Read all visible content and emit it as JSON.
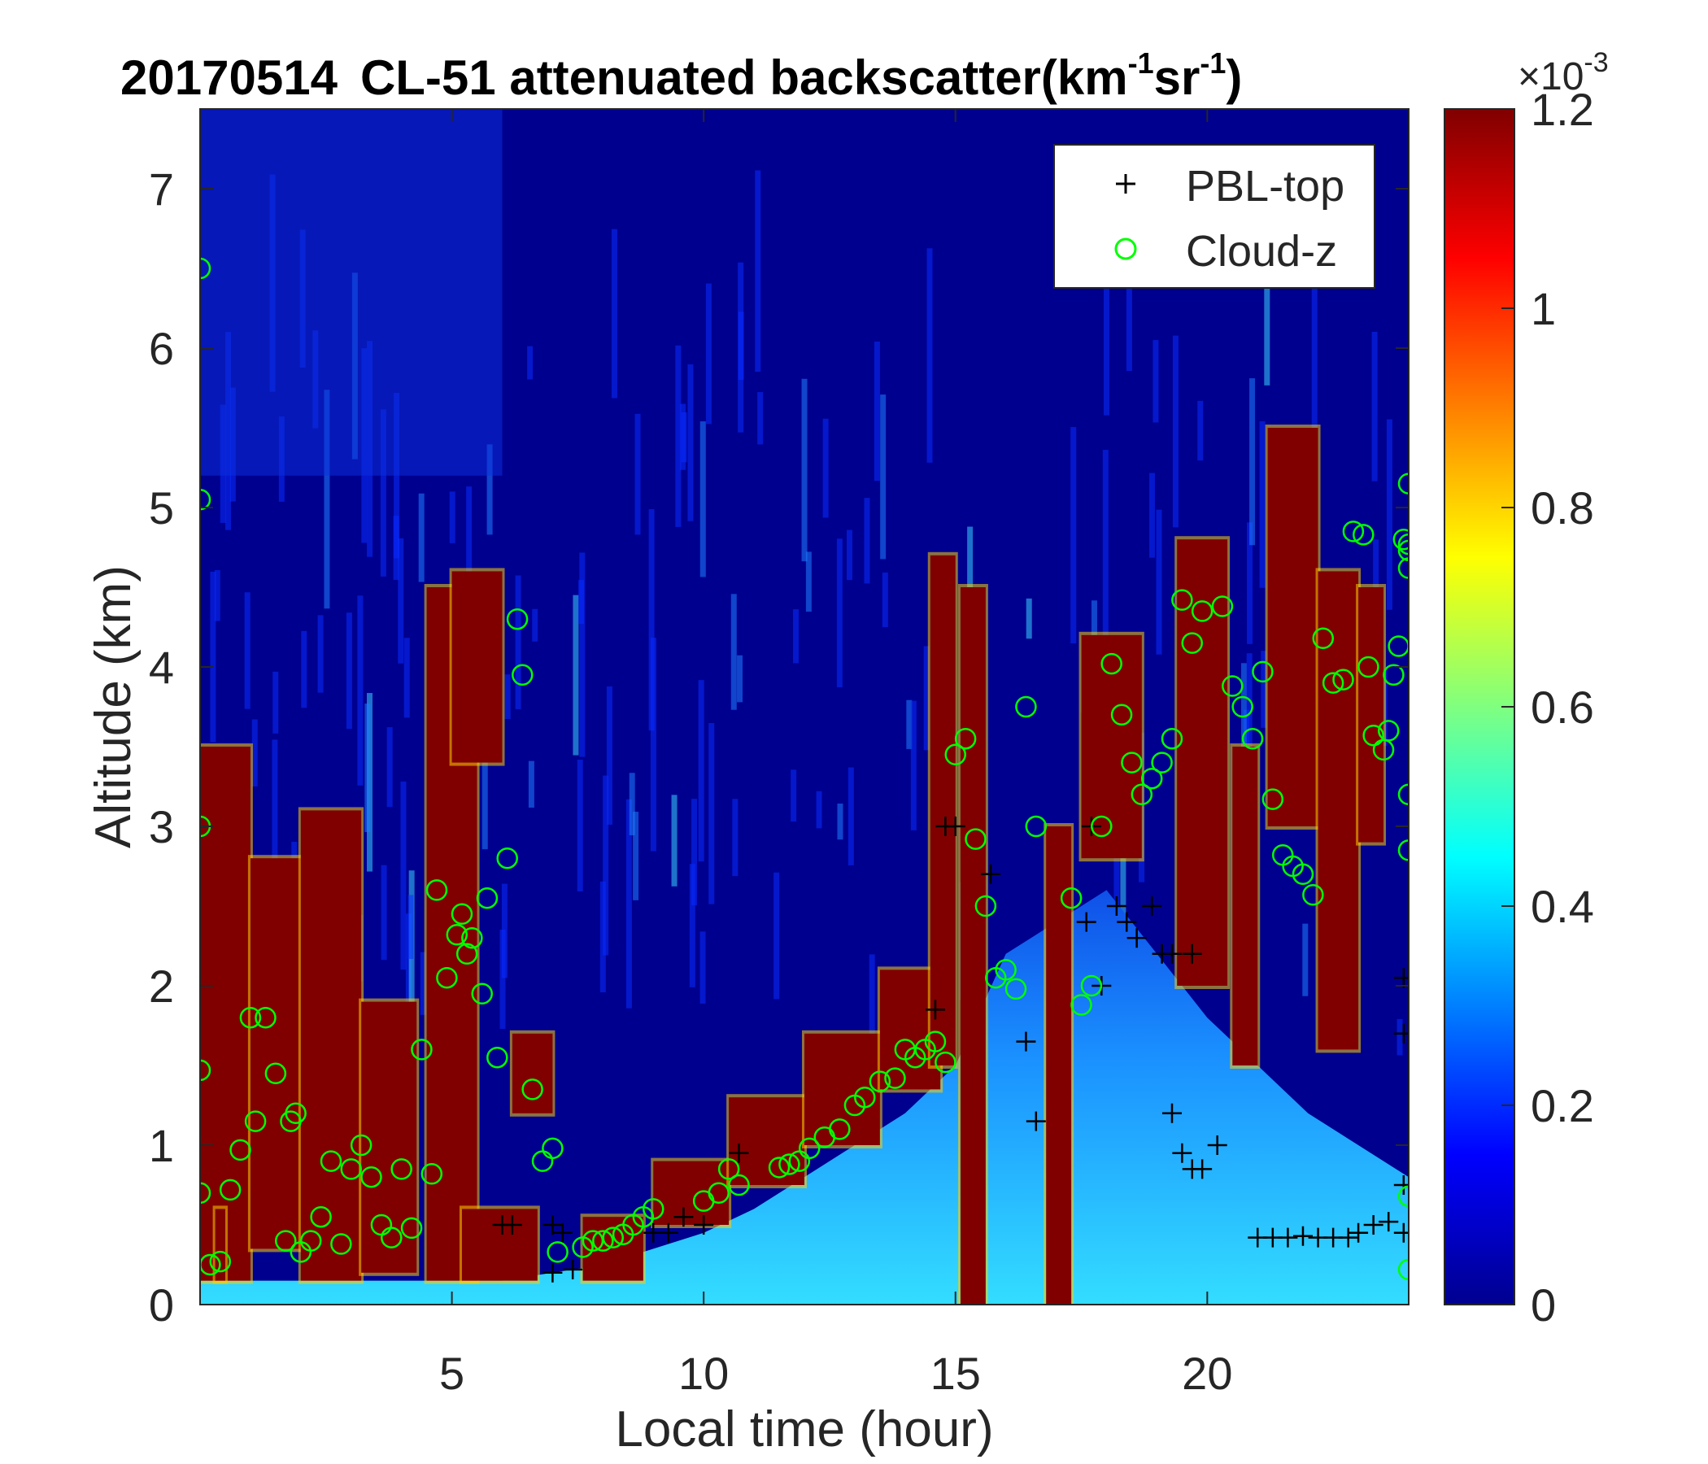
{
  "chart_data": {
    "type": "heatmap",
    "title": {
      "date": "20170514",
      "text": "CL-51 attenuated backscatter(km",
      "sup1": "-1",
      "mid": "sr",
      "sup2": "-1",
      "end": ")"
    },
    "xlabel": "Local time (hour)",
    "ylabel": "Altitude (km)",
    "xlim": [
      0,
      24
    ],
    "ylim": [
      0,
      7.5
    ],
    "xticks": [
      "5",
      "10",
      "15",
      "20"
    ],
    "yticks": [
      "0",
      "1",
      "2",
      "3",
      "4",
      "5",
      "6",
      "7"
    ],
    "colorbar": {
      "range": [
        0,
        1.2
      ],
      "ticks": [
        "0",
        "0.2",
        "0.4",
        "0.6",
        "0.8",
        "1",
        "1.2"
      ],
      "multiplier": "×10",
      "multiplier_exp": "-3",
      "colormap": "jet"
    },
    "legend": {
      "position": "top-right",
      "entries": [
        {
          "label": "PBL-top",
          "marker": "+",
          "color": "#000000"
        },
        {
          "label": "Cloud-z",
          "marker": "o",
          "color": "#00ff00"
        }
      ]
    },
    "colors": {
      "background_low": "#00008f",
      "high": "#800000",
      "marker_pbl": "#000000",
      "marker_cloud": "#00ff00"
    },
    "aerosol_layer_top": [
      [
        0,
        0.15
      ],
      [
        3,
        0.15
      ],
      [
        6,
        0.15
      ],
      [
        7,
        0.2
      ],
      [
        8,
        0.25
      ],
      [
        9,
        0.35
      ],
      [
        10,
        0.45
      ],
      [
        11,
        0.6
      ],
      [
        12,
        0.8
      ],
      [
        13,
        1.0
      ],
      [
        14,
        1.2
      ],
      [
        15,
        1.5
      ],
      [
        16,
        2.2
      ],
      [
        17,
        2.4
      ],
      [
        18,
        2.6
      ],
      [
        19,
        2.2
      ],
      [
        20,
        1.8
      ],
      [
        21,
        1.5
      ],
      [
        22,
        1.2
      ],
      [
        23,
        1.0
      ],
      [
        24,
        0.8
      ]
    ],
    "cloud_blocks": [
      {
        "x": [
          0.0,
          1.0
        ],
        "y": [
          0.15,
          3.5
        ]
      },
      {
        "x": [
          0.3,
          0.5
        ],
        "y": [
          0.15,
          0.6
        ]
      },
      {
        "x": [
          1.0,
          2.0
        ],
        "y": [
          0.35,
          2.8
        ]
      },
      {
        "x": [
          2.0,
          3.2
        ],
        "y": [
          0.15,
          3.1
        ]
      },
      {
        "x": [
          3.2,
          4.3
        ],
        "y": [
          0.2,
          1.9
        ]
      },
      {
        "x": [
          4.5,
          5.5
        ],
        "y": [
          0.15,
          4.5
        ]
      },
      {
        "x": [
          5.0,
          6.0
        ],
        "y": [
          3.4,
          4.6
        ]
      },
      {
        "x": [
          6.2,
          7.0
        ],
        "y": [
          1.2,
          1.7
        ]
      },
      {
        "x": [
          5.2,
          6.7
        ],
        "y": [
          0.15,
          0.6
        ]
      },
      {
        "x": [
          7.6,
          8.8
        ],
        "y": [
          0.15,
          0.55
        ]
      },
      {
        "x": [
          9.0,
          10.5
        ],
        "y": [
          0.5,
          0.9
        ]
      },
      {
        "x": [
          10.5,
          12.0
        ],
        "y": [
          0.75,
          1.3
        ]
      },
      {
        "x": [
          12.0,
          13.5
        ],
        "y": [
          1.0,
          1.7
        ]
      },
      {
        "x": [
          13.5,
          14.7
        ],
        "y": [
          1.35,
          2.1
        ]
      },
      {
        "x": [
          14.5,
          15.0
        ],
        "y": [
          1.5,
          4.7
        ]
      },
      {
        "x": [
          15.1,
          15.6
        ],
        "y": [
          0.0,
          4.5
        ]
      },
      {
        "x": [
          16.8,
          17.3
        ],
        "y": [
          0.0,
          3.0
        ]
      },
      {
        "x": [
          17.5,
          18.7
        ],
        "y": [
          2.8,
          4.2
        ]
      },
      {
        "x": [
          19.4,
          20.4
        ],
        "y": [
          2.0,
          4.8
        ]
      },
      {
        "x": [
          20.5,
          21.0
        ],
        "y": [
          1.5,
          3.5
        ]
      },
      {
        "x": [
          21.2,
          22.2
        ],
        "y": [
          3.0,
          5.5
        ]
      },
      {
        "x": [
          22.2,
          23.0
        ],
        "y": [
          1.6,
          4.6
        ]
      },
      {
        "x": [
          23.0,
          23.5
        ],
        "y": [
          2.9,
          4.5
        ]
      }
    ],
    "pbl_top": [
      [
        6.0,
        0.5
      ],
      [
        6.2,
        0.5
      ],
      [
        7.0,
        0.5
      ],
      [
        7.2,
        0.45
      ],
      [
        7.0,
        0.2
      ],
      [
        7.4,
        0.22
      ],
      [
        9.0,
        0.45
      ],
      [
        9.3,
        0.45
      ],
      [
        9.6,
        0.55
      ],
      [
        10.0,
        0.5
      ],
      [
        10.7,
        0.95
      ],
      [
        14.6,
        1.85
      ],
      [
        14.8,
        3.0
      ],
      [
        15.0,
        3.0
      ],
      [
        15.7,
        2.7
      ],
      [
        16.4,
        1.65
      ],
      [
        16.6,
        1.15
      ],
      [
        17.6,
        2.4
      ],
      [
        17.7,
        3.0
      ],
      [
        17.9,
        2.0
      ],
      [
        18.2,
        2.5
      ],
      [
        18.4,
        2.4
      ],
      [
        18.6,
        2.3
      ],
      [
        18.9,
        2.5
      ],
      [
        19.1,
        2.2
      ],
      [
        19.3,
        2.2
      ],
      [
        19.7,
        2.2
      ],
      [
        19.3,
        1.2
      ],
      [
        19.5,
        0.95
      ],
      [
        19.7,
        0.85
      ],
      [
        19.9,
        0.85
      ],
      [
        20.2,
        1.0
      ],
      [
        21.0,
        0.42
      ],
      [
        21.3,
        0.42
      ],
      [
        21.6,
        0.42
      ],
      [
        21.9,
        0.43
      ],
      [
        22.2,
        0.42
      ],
      [
        22.5,
        0.42
      ],
      [
        22.8,
        0.42
      ],
      [
        23.0,
        0.45
      ],
      [
        23.3,
        0.5
      ],
      [
        23.6,
        0.52
      ],
      [
        23.9,
        0.75
      ],
      [
        23.9,
        2.05
      ],
      [
        23.9,
        1.7
      ],
      [
        23.9,
        0.45
      ]
    ],
    "cloud_z": [
      [
        0.0,
        6.5
      ],
      [
        0.0,
        5.05
      ],
      [
        0.0,
        3.0
      ],
      [
        0.0,
        1.47
      ],
      [
        0.0,
        0.7
      ],
      [
        0.2,
        0.25
      ],
      [
        0.4,
        0.27
      ],
      [
        0.6,
        0.72
      ],
      [
        0.8,
        0.97
      ],
      [
        1.0,
        1.8
      ],
      [
        1.1,
        1.15
      ],
      [
        1.3,
        1.8
      ],
      [
        1.5,
        1.45
      ],
      [
        1.7,
        0.4
      ],
      [
        1.8,
        1.15
      ],
      [
        1.9,
        1.2
      ],
      [
        2.0,
        0.33
      ],
      [
        2.2,
        0.4
      ],
      [
        2.4,
        0.55
      ],
      [
        2.6,
        0.9
      ],
      [
        2.8,
        0.38
      ],
      [
        3.0,
        0.85
      ],
      [
        3.2,
        1.0
      ],
      [
        3.4,
        0.8
      ],
      [
        3.6,
        0.5
      ],
      [
        3.8,
        0.42
      ],
      [
        4.0,
        0.85
      ],
      [
        4.2,
        0.48
      ],
      [
        4.4,
        1.6
      ],
      [
        4.6,
        0.82
      ],
      [
        4.7,
        2.6
      ],
      [
        4.9,
        2.05
      ],
      [
        5.1,
        2.32
      ],
      [
        5.2,
        2.45
      ],
      [
        5.3,
        2.2
      ],
      [
        5.4,
        2.3
      ],
      [
        5.6,
        1.95
      ],
      [
        5.7,
        2.55
      ],
      [
        5.9,
        1.55
      ],
      [
        6.1,
        2.8
      ],
      [
        6.3,
        4.3
      ],
      [
        6.4,
        3.95
      ],
      [
        6.6,
        1.35
      ],
      [
        6.8,
        0.9
      ],
      [
        7.0,
        0.98
      ],
      [
        7.1,
        0.33
      ],
      [
        7.6,
        0.36
      ],
      [
        7.8,
        0.4
      ],
      [
        8.0,
        0.4
      ],
      [
        8.2,
        0.42
      ],
      [
        8.4,
        0.44
      ],
      [
        8.6,
        0.5
      ],
      [
        8.8,
        0.55
      ],
      [
        9.0,
        0.6
      ],
      [
        10.0,
        0.65
      ],
      [
        10.3,
        0.7
      ],
      [
        10.5,
        0.85
      ],
      [
        10.7,
        0.75
      ],
      [
        11.5,
        0.86
      ],
      [
        11.7,
        0.88
      ],
      [
        11.9,
        0.9
      ],
      [
        12.1,
        0.98
      ],
      [
        12.4,
        1.05
      ],
      [
        12.7,
        1.1
      ],
      [
        13.0,
        1.25
      ],
      [
        13.2,
        1.3
      ],
      [
        13.5,
        1.4
      ],
      [
        13.8,
        1.42
      ],
      [
        14.0,
        1.6
      ],
      [
        14.2,
        1.55
      ],
      [
        14.4,
        1.6
      ],
      [
        14.6,
        1.65
      ],
      [
        14.8,
        1.52
      ],
      [
        15.0,
        3.45
      ],
      [
        15.2,
        3.55
      ],
      [
        15.4,
        2.92
      ],
      [
        15.6,
        2.5
      ],
      [
        15.8,
        2.05
      ],
      [
        16.0,
        2.1
      ],
      [
        16.2,
        1.98
      ],
      [
        16.4,
        3.75
      ],
      [
        16.6,
        3.0
      ],
      [
        17.3,
        2.55
      ],
      [
        17.5,
        1.88
      ],
      [
        17.7,
        2.0
      ],
      [
        17.9,
        3.0
      ],
      [
        18.1,
        4.02
      ],
      [
        18.3,
        3.7
      ],
      [
        18.5,
        3.4
      ],
      [
        18.7,
        3.2
      ],
      [
        18.9,
        3.3
      ],
      [
        19.1,
        3.4
      ],
      [
        19.3,
        3.55
      ],
      [
        19.5,
        4.42
      ],
      [
        19.7,
        4.15
      ],
      [
        19.9,
        4.35
      ],
      [
        20.3,
        4.38
      ],
      [
        20.5,
        3.88
      ],
      [
        20.7,
        3.75
      ],
      [
        20.9,
        3.55
      ],
      [
        21.1,
        3.97
      ],
      [
        21.3,
        3.17
      ],
      [
        21.5,
        2.82
      ],
      [
        21.7,
        2.75
      ],
      [
        21.9,
        2.7
      ],
      [
        22.1,
        2.57
      ],
      [
        22.3,
        4.18
      ],
      [
        22.5,
        3.9
      ],
      [
        22.7,
        3.92
      ],
      [
        22.9,
        4.85
      ],
      [
        23.1,
        4.83
      ],
      [
        23.2,
        4.0
      ],
      [
        23.3,
        3.57
      ],
      [
        23.5,
        3.48
      ],
      [
        23.6,
        3.6
      ],
      [
        23.7,
        3.95
      ],
      [
        23.8,
        4.13
      ],
      [
        23.9,
        4.8
      ],
      [
        24.0,
        4.77
      ],
      [
        24.0,
        4.73
      ],
      [
        24.0,
        4.62
      ],
      [
        24.0,
        2.85
      ],
      [
        24.0,
        5.15
      ],
      [
        24.0,
        3.2
      ],
      [
        24.0,
        0.68
      ],
      [
        24.0,
        0.22
      ]
    ]
  }
}
